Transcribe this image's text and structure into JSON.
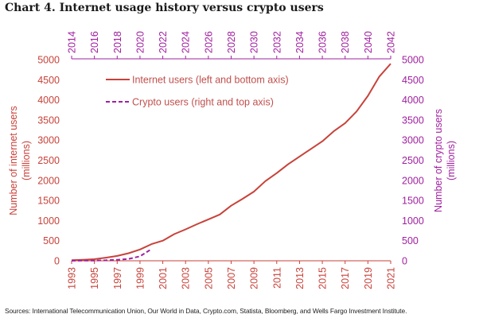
{
  "title": "Chart 4. Internet usage history versus crypto users",
  "source": "Sources: International Telecommunication Union, Our World in Data, Crypto.com, Statista, Bloomberg, and Wells Fargo Investment Institute.",
  "colors": {
    "internet": "#c8423a",
    "crypto": "#a020a0",
    "left_axis_text": "#c8423a",
    "right_axis_text": "#a020a0"
  },
  "chart_data": {
    "type": "line",
    "title": "Chart 4. Internet usage history versus crypto users",
    "left_axis_label": [
      "Number of internet users",
      "(millions)"
    ],
    "right_axis_label": [
      "Number of crypto users",
      "(millions)"
    ],
    "y_ticks": [
      "0",
      "500",
      "1000",
      "1500",
      "2000",
      "2500",
      "3000",
      "3500",
      "4000",
      "4500",
      "5000"
    ],
    "ylim": [
      0,
      5000
    ],
    "bottom_x_ticks": [
      "1993",
      "1995",
      "1997",
      "1999",
      "2001",
      "2003",
      "2005",
      "2007",
      "2009",
      "2011",
      "2013",
      "2015",
      "2017",
      "2019",
      "2021"
    ],
    "bottom_xlim": [
      1993,
      2021
    ],
    "top_x_ticks": [
      "2014",
      "2016",
      "2018",
      "2020",
      "2022",
      "2024",
      "2026",
      "2028",
      "2030",
      "2032",
      "2034",
      "2036",
      "2038",
      "2040",
      "2042"
    ],
    "top_xlim": [
      2014,
      2042
    ],
    "grid": false,
    "legend_position": "top-left",
    "series": [
      {
        "name": "Internet users (left and bottom axis)",
        "axis": "left-bottom",
        "style": "solid",
        "x": [
          1993,
          1994,
          1995,
          1996,
          1997,
          1998,
          1999,
          2000,
          2001,
          2002,
          2003,
          2004,
          2005,
          2006,
          2007,
          2008,
          2009,
          2010,
          2011,
          2012,
          2013,
          2014,
          2015,
          2016,
          2017,
          2018,
          2019,
          2020,
          2021
        ],
        "y": [
          14,
          25,
          40,
          77,
          120,
          188,
          281,
          413,
          500,
          662,
          780,
          910,
          1030,
          1150,
          1370,
          1540,
          1720,
          1980,
          2180,
          2400,
          2590,
          2780,
          2970,
          3220,
          3420,
          3710,
          4100,
          4580,
          4900
        ]
      },
      {
        "name": "Crypto users (right and top axis)",
        "axis": "right-top",
        "style": "dashed",
        "x": [
          2014,
          2015,
          2016,
          2017,
          2018,
          2019,
          2020,
          2021
        ],
        "y": [
          1,
          3,
          6,
          12,
          25,
          45,
          110,
          290
        ]
      }
    ]
  }
}
